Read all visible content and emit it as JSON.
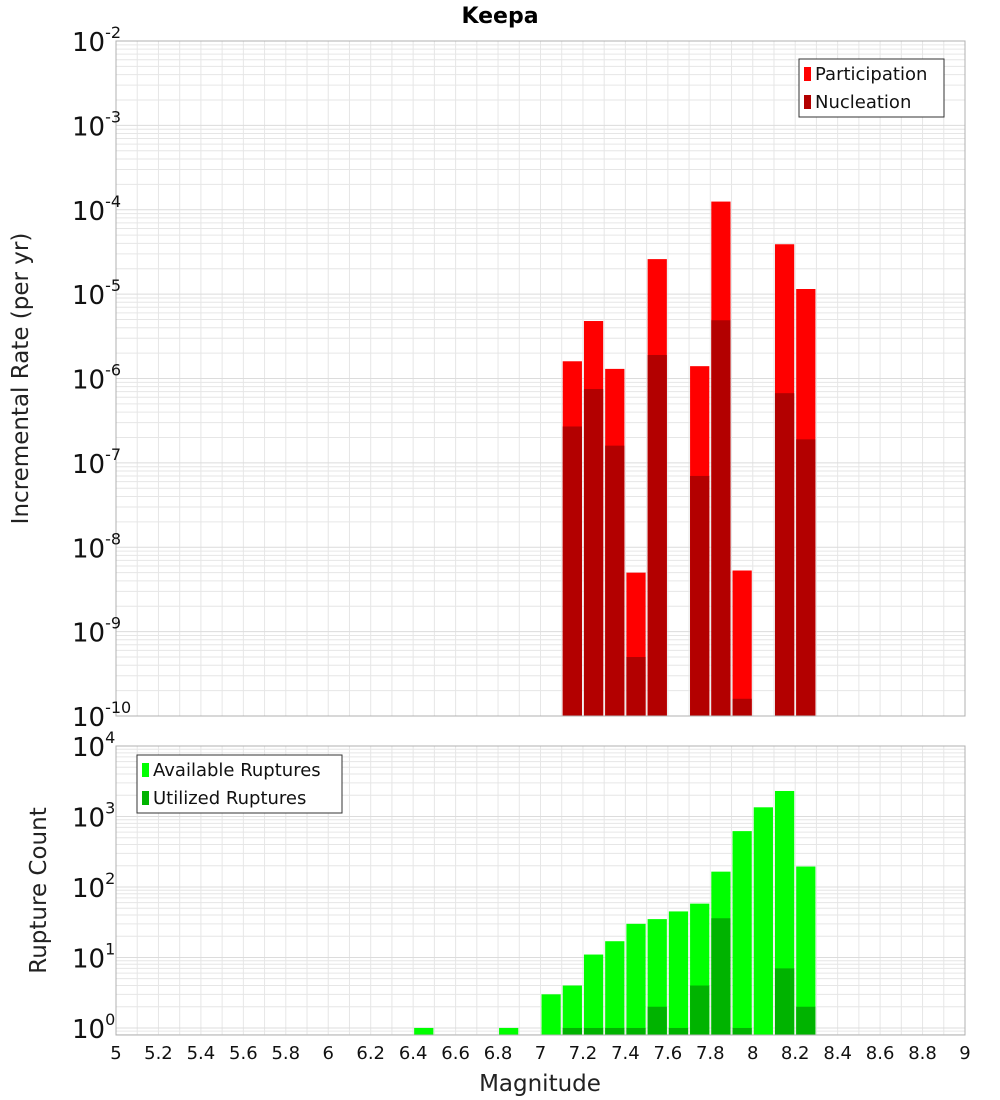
{
  "title": "Keepa",
  "colors": {
    "participation": "#ff0000",
    "nucleation": "#b30000",
    "available": "#00ff00",
    "utilized": "#00b300",
    "grid": "#e6e6e6",
    "frame": "#b0b0b0"
  },
  "chart_data": [
    {
      "type": "bar",
      "name": "rate-panel",
      "ylabel": "Incremental Rate (per yr)",
      "yscale": "log",
      "ylim_exp": [
        -10,
        -2
      ],
      "ytick_exponents": [
        "-10",
        "-9",
        "-8",
        "-7",
        "-6",
        "-5",
        "-4",
        "-3",
        "-2"
      ],
      "xlim": [
        5,
        9
      ],
      "bin_width": 0.1,
      "legend": {
        "position": "top-right",
        "entries": [
          "Participation",
          "Nucleation"
        ]
      },
      "series": [
        {
          "name": "Participation",
          "x": [
            7.15,
            7.25,
            7.35,
            7.45,
            7.55,
            7.75,
            7.85,
            7.95,
            8.15,
            8.25
          ],
          "values": [
            1.6e-06,
            4.8e-06,
            1.3e-06,
            5e-09,
            2.6e-05,
            1.4e-06,
            0.000125,
            5.3e-09,
            3.9e-05,
            1.15e-05
          ]
        },
        {
          "name": "Nucleation",
          "x": [
            7.15,
            7.25,
            7.35,
            7.45,
            7.55,
            7.75,
            7.85,
            7.95,
            8.15,
            8.25
          ],
          "values": [
            2.7e-07,
            7.5e-07,
            1.6e-07,
            5e-10,
            1.9e-06,
            7e-08,
            4.9e-06,
            1.6e-10,
            6.7e-07,
            1.9e-07
          ]
        }
      ]
    },
    {
      "type": "bar",
      "name": "count-panel",
      "xlabel": "Magnitude",
      "ylabel": "Rupture Count",
      "yscale": "log",
      "ylim_exp": [
        -0.1,
        4
      ],
      "ytick_exponents": [
        "0",
        "1",
        "2",
        "3",
        "4"
      ],
      "xlim": [
        5,
        9
      ],
      "xticks": [
        "5",
        "5.2",
        "5.4",
        "5.6",
        "5.8",
        "6",
        "6.2",
        "6.4",
        "6.6",
        "6.8",
        "7",
        "7.2",
        "7.4",
        "7.6",
        "7.8",
        "8",
        "8.2",
        "8.4",
        "8.6",
        "8.8",
        "9"
      ],
      "bin_width": 0.1,
      "legend": {
        "position": "top-left",
        "entries": [
          "Available Ruptures",
          "Utilized Ruptures"
        ]
      },
      "series": [
        {
          "name": "Available Ruptures",
          "x": [
            6.45,
            6.85,
            7.05,
            7.15,
            7.25,
            7.35,
            7.45,
            7.55,
            7.65,
            7.75,
            7.85,
            7.95,
            8.05,
            8.15,
            8.25
          ],
          "values": [
            1,
            1,
            3,
            4,
            11,
            17,
            30,
            35,
            45,
            58,
            165,
            620,
            1350,
            2300,
            195
          ]
        },
        {
          "name": "Utilized Ruptures",
          "x": [
            7.15,
            7.25,
            7.35,
            7.45,
            7.55,
            7.65,
            7.75,
            7.85,
            7.95,
            8.15,
            8.25
          ],
          "values": [
            1,
            1,
            1,
            1,
            2,
            1,
            4,
            36,
            1,
            7,
            2
          ]
        }
      ]
    }
  ]
}
